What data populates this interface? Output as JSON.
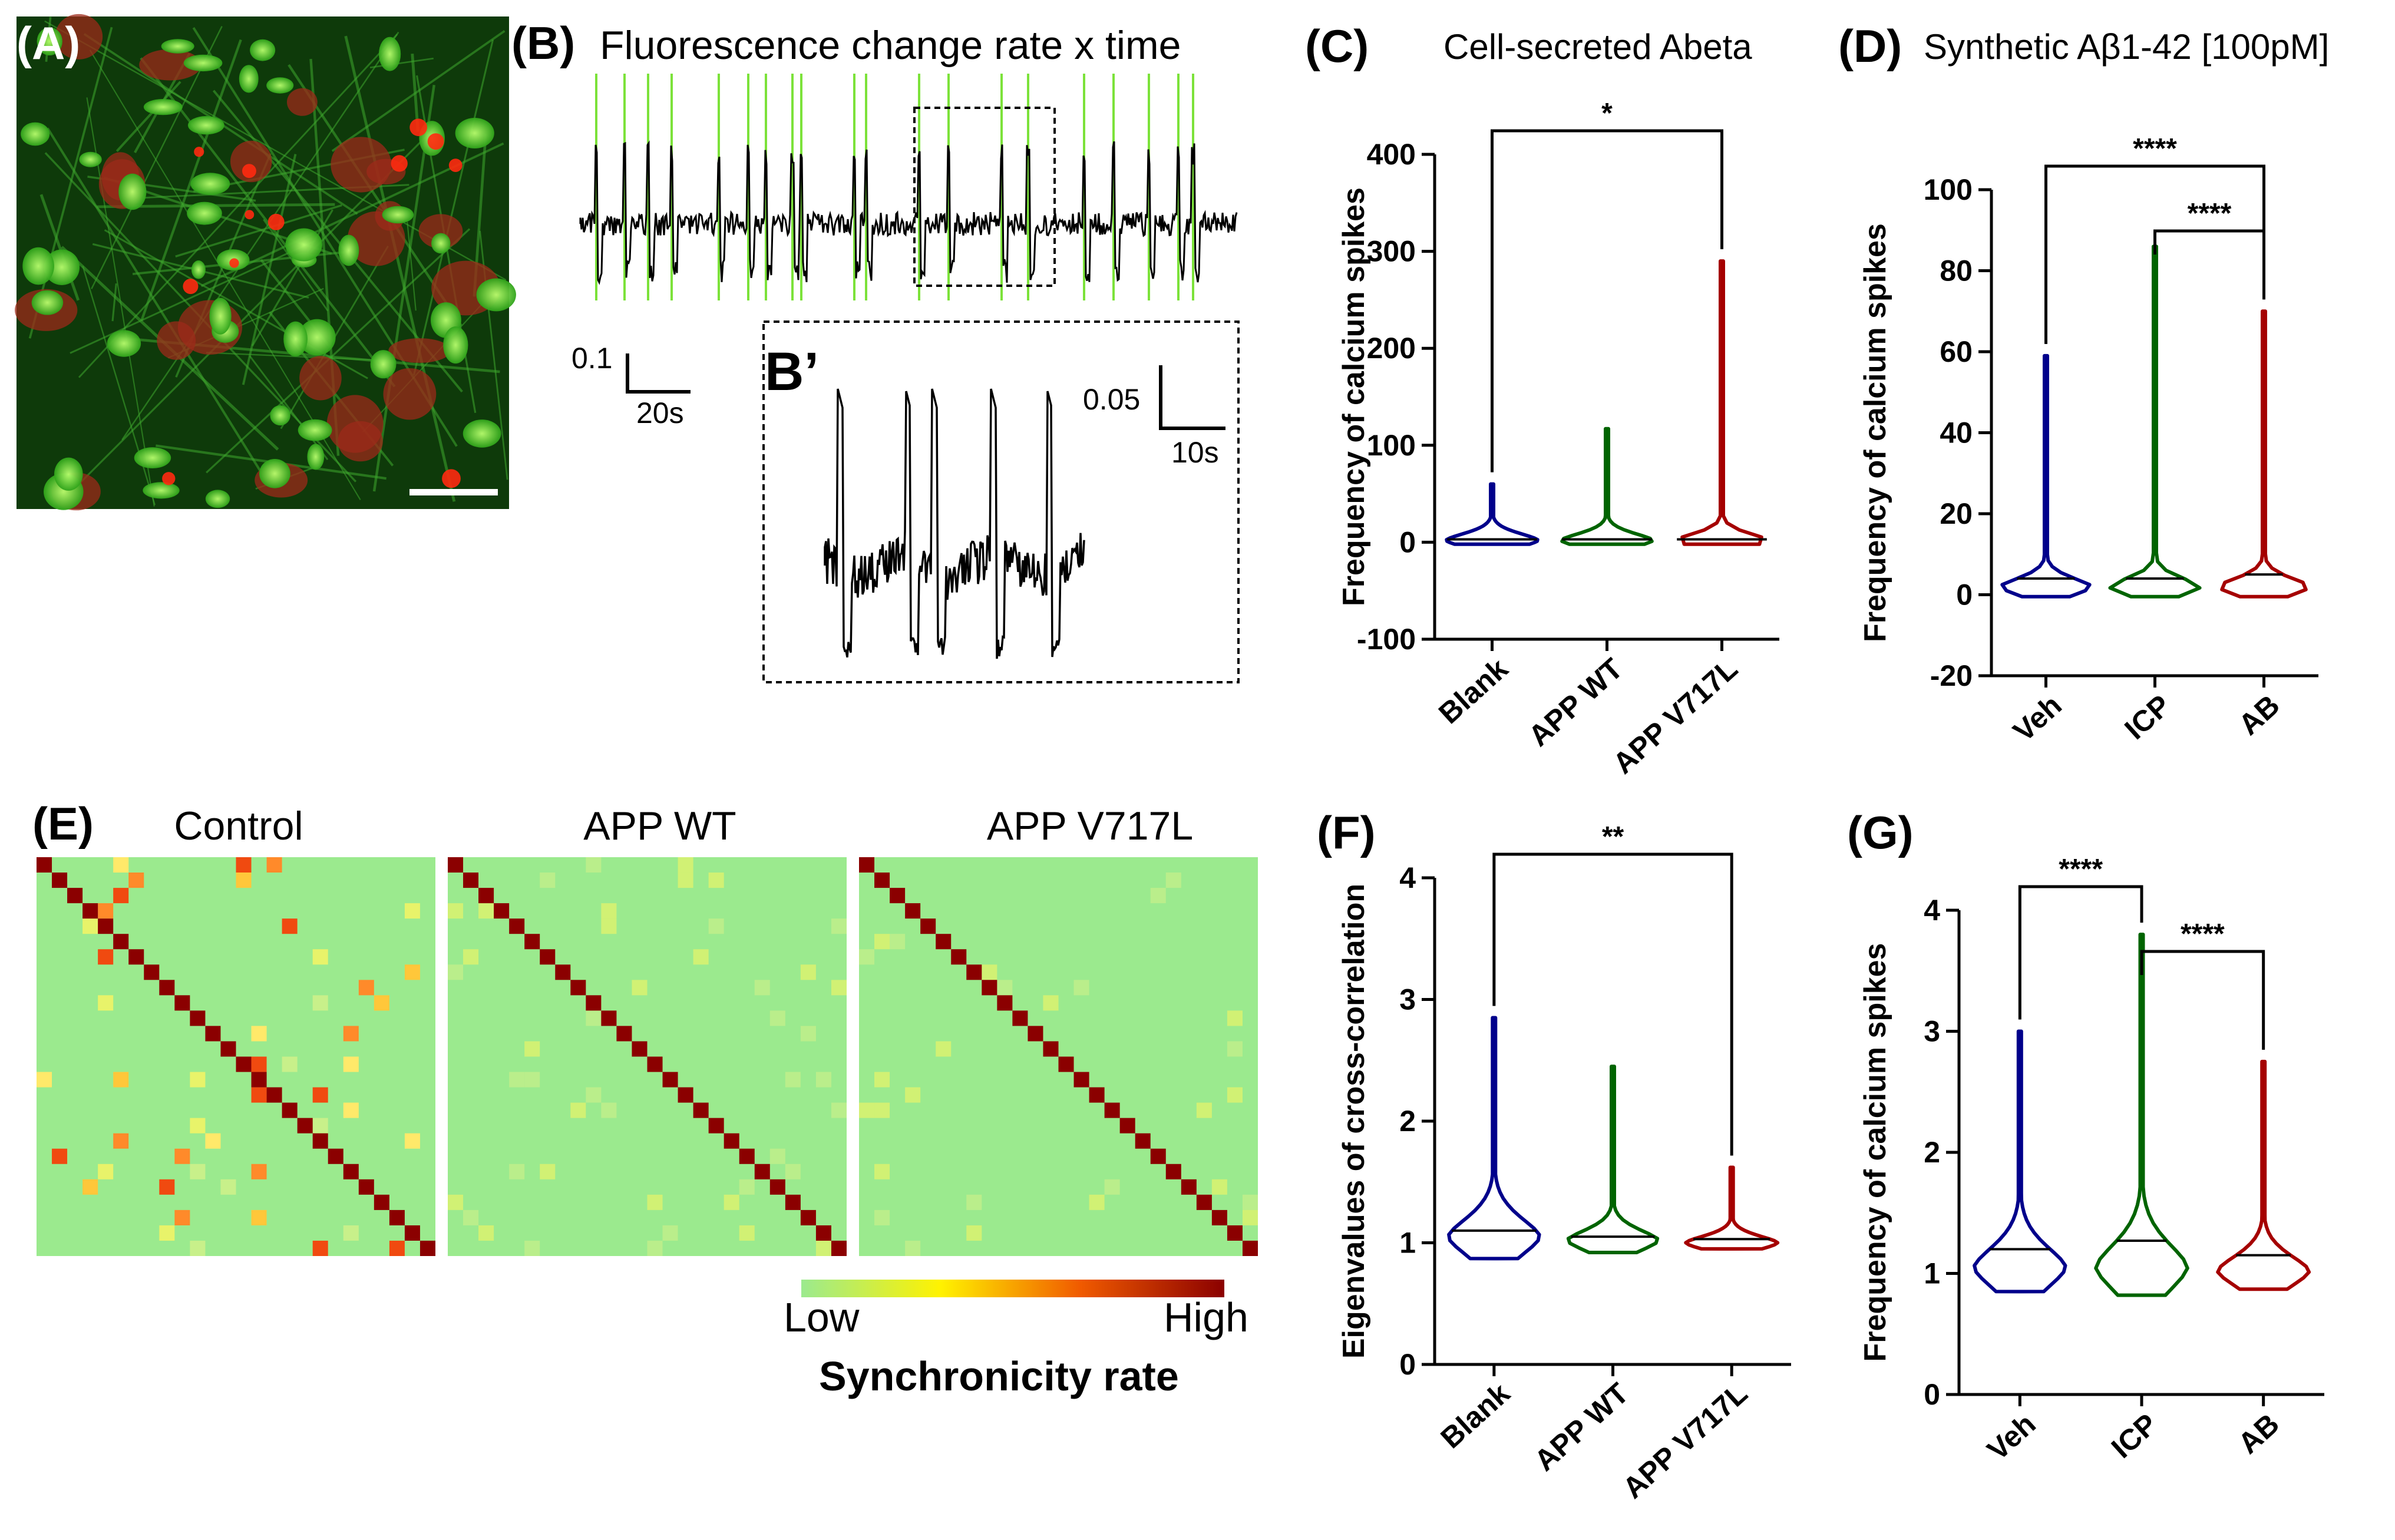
{
  "panels": {
    "A": {
      "letter": "(A)"
    },
    "B": {
      "letter": "(B)",
      "title": "Fluorescence change rate x time",
      "inset_letter": "B’",
      "scale_main_y": "0.1",
      "scale_main_x": "20s",
      "scale_inset_y": "0.05",
      "scale_inset_x": "10s"
    },
    "C": {
      "letter": "(C)",
      "title": "Cell-secreted Abeta"
    },
    "D": {
      "letter": "(D)",
      "title": "Synthetic Aβ1-42 [100pM]"
    },
    "E": {
      "letter": "(E)",
      "titles": [
        "Control",
        "APP WT",
        "APP V717L"
      ],
      "colorbar": {
        "low": "Low",
        "high": "High",
        "label": "Synchronicity rate"
      }
    },
    "F": {
      "letter": "(F)"
    },
    "G": {
      "letter": "(G)"
    }
  },
  "colors": {
    "blue": "#00008B",
    "green": "#006400",
    "red": "#A50000",
    "fluor_green": "#7CE23A",
    "matrix_bg": "#9BEA8E",
    "diag": "#8B0000"
  },
  "chart_data": [
    {
      "id": "C",
      "type": "violin",
      "title": "Cell-secreted Abeta",
      "ylabel": "Frequency of calcium spikes",
      "ylim": [
        -100,
        400
      ],
      "yticks": [
        -100,
        0,
        100,
        200,
        300,
        400
      ],
      "categories": [
        "Blank",
        "APP WT",
        "APP V717L"
      ],
      "series": [
        {
          "name": "Blank",
          "color": "#00008B",
          "max": 60,
          "median": 3,
          "q_peak": 2
        },
        {
          "name": "APP WT",
          "color": "#006400",
          "max": 117,
          "median": 3,
          "q_peak": 2
        },
        {
          "name": "APP V717L",
          "color": "#A50000",
          "max": 290,
          "median": 3,
          "q_peak": 2
        }
      ],
      "significance": [
        {
          "from": 0,
          "to": 2,
          "label": "*"
        }
      ]
    },
    {
      "id": "D",
      "type": "violin",
      "title": "Synthetic Aβ1-42 [100pM]",
      "ylabel": "Frequency of calcium spikes",
      "ylim": [
        -20,
        100
      ],
      "yticks": [
        -20,
        0,
        20,
        40,
        60,
        80,
        100
      ],
      "categories": [
        "Veh",
        "ICP",
        "AB"
      ],
      "series": [
        {
          "name": "Veh",
          "color": "#00008B",
          "max": 59,
          "median": 4,
          "q_peak": 2
        },
        {
          "name": "ICP",
          "color": "#006400",
          "max": 86,
          "median": 4,
          "q_peak": 2
        },
        {
          "name": "AB",
          "color": "#A50000",
          "max": 70,
          "median": 5,
          "q_peak": 2
        }
      ],
      "significance": [
        {
          "from": 0,
          "to": 2,
          "label": "****"
        },
        {
          "from": 1,
          "to": 2,
          "label": "****"
        }
      ]
    },
    {
      "id": "F",
      "type": "violin",
      "title": "",
      "ylabel": "Eigenvalues of cross-correlation",
      "ylim": [
        0,
        4
      ],
      "yticks": [
        0,
        1,
        2,
        3,
        4
      ],
      "categories": [
        "Blank",
        "APP WT",
        "APP V717L"
      ],
      "series": [
        {
          "name": "Blank",
          "color": "#00008B",
          "min": 0.87,
          "max": 2.85,
          "median": 1.1,
          "q_peak": 1.05
        },
        {
          "name": "APP WT",
          "color": "#006400",
          "min": 0.92,
          "max": 2.45,
          "median": 1.05,
          "q_peak": 1.02
        },
        {
          "name": "APP V717L",
          "color": "#A50000",
          "min": 0.95,
          "max": 1.62,
          "median": 1.03,
          "q_peak": 1.0
        }
      ],
      "significance": [
        {
          "from": 0,
          "to": 2,
          "label": "**"
        }
      ]
    },
    {
      "id": "G",
      "type": "violin",
      "title": "",
      "ylabel": "Frequency of calcium spikes",
      "ylim": [
        0,
        4
      ],
      "yticks": [
        0,
        1,
        2,
        3,
        4
      ],
      "categories": [
        "Veh",
        "ICP",
        "AB"
      ],
      "series": [
        {
          "name": "Veh",
          "color": "#00008B",
          "min": 0.85,
          "max": 3.0,
          "median": 1.2,
          "q_peak": 1.05
        },
        {
          "name": "ICP",
          "color": "#006400",
          "min": 0.82,
          "max": 3.8,
          "median": 1.27,
          "q_peak": 1.05
        },
        {
          "name": "AB",
          "color": "#A50000",
          "min": 0.87,
          "max": 2.75,
          "median": 1.15,
          "q_peak": 1.02
        }
      ],
      "significance": [
        {
          "from": 0,
          "to": 1,
          "label": "****"
        },
        {
          "from": 1,
          "to": 2,
          "label": "****"
        }
      ]
    }
  ]
}
